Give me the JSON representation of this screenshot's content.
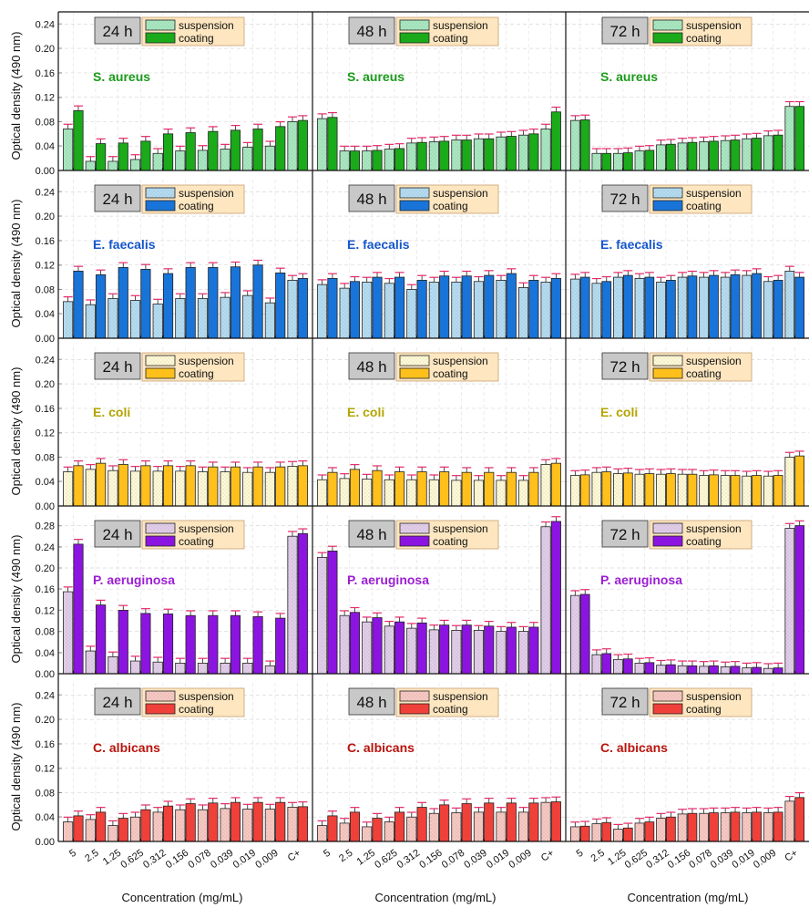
{
  "figure": {
    "ylabel": "Optical density (490 nm)",
    "xlabel": "Concentration (mg/mL)",
    "times": [
      "24 h",
      "48 h",
      "72 h"
    ],
    "legend": [
      "suspension",
      "coating"
    ],
    "x_tick_labels": [
      "5",
      "2.5",
      "1.25",
      "0.625",
      "0.312",
      "0.156",
      "0.078",
      "0.039",
      "0.019",
      "0.009",
      "C+"
    ]
  },
  "colors": {
    "S. aureus": {
      "coat": "#1aaa1a",
      "susp": "#a8e8c0",
      "label": "#1a9a1a"
    },
    "E. faecalis": {
      "coat": "#1874d8",
      "susp": "#b4dcf2",
      "label": "#1456cc"
    },
    "E. coli": {
      "coat": "#ffc01c",
      "susp": "#fffad6",
      "label": "#b4a400"
    },
    "P. aeruginosa": {
      "coat": "#8c14e0",
      "susp": "#e2cdea",
      "label": "#9c1ed4"
    },
    "C. albicans": {
      "coat": "#f0403a",
      "susp": "#f8c8c2",
      "label": "#b8140c"
    },
    "errorbar": "#e8286a",
    "legend_bg": "#fde6c0",
    "time_badge_bg": "#c8c8c8"
  },
  "chart_data": [
    {
      "type": "bar",
      "organism": "S. aureus",
      "ylim": [
        0,
        0.26
      ],
      "yticks": [
        "0.00",
        "0.04",
        "0.08",
        "0.12",
        "0.16",
        "0.20",
        "0.24"
      ],
      "panels": [
        {
          "time": "24 h",
          "categories": [
            "5",
            "2.5",
            "1.25",
            "0.625",
            "0.312",
            "0.156",
            "0.078",
            "0.039",
            "0.019",
            "0.009",
            "C+"
          ],
          "series": [
            {
              "name": "suspension",
              "values": [
                0.068,
                0.015,
                0.015,
                0.018,
                0.028,
                0.032,
                0.033,
                0.035,
                0.038,
                0.04,
                0.08
              ]
            },
            {
              "name": "coating",
              "values": [
                0.098,
                0.044,
                0.045,
                0.048,
                0.06,
                0.062,
                0.064,
                0.066,
                0.068,
                0.072,
                0.082
              ]
            }
          ]
        },
        {
          "time": "48 h",
          "categories": [
            "5",
            "2.5",
            "1.25",
            "0.625",
            "0.312",
            "0.156",
            "0.078",
            "0.039",
            "0.019",
            "0.009",
            "C+"
          ],
          "series": [
            {
              "name": "suspension",
              "values": [
                0.085,
                0.032,
                0.032,
                0.035,
                0.045,
                0.047,
                0.05,
                0.052,
                0.055,
                0.058,
                0.068
              ]
            },
            {
              "name": "coating",
              "values": [
                0.087,
                0.032,
                0.033,
                0.036,
                0.046,
                0.048,
                0.05,
                0.052,
                0.056,
                0.06,
                0.096
              ]
            }
          ]
        },
        {
          "time": "72 h",
          "categories": [
            "5",
            "2.5",
            "1.25",
            "0.625",
            "0.312",
            "0.156",
            "0.078",
            "0.039",
            "0.019",
            "0.009",
            "C+"
          ],
          "series": [
            {
              "name": "suspension",
              "values": [
                0.082,
                0.028,
                0.028,
                0.032,
                0.042,
                0.045,
                0.047,
                0.049,
                0.052,
                0.057,
                0.105
              ]
            },
            {
              "name": "coating",
              "values": [
                0.083,
                0.028,
                0.029,
                0.033,
                0.043,
                0.046,
                0.048,
                0.05,
                0.053,
                0.058,
                0.105
              ]
            }
          ]
        }
      ]
    },
    {
      "type": "bar",
      "organism": "E. faecalis",
      "ylim": [
        0,
        0.26
      ],
      "yticks": [
        "0.00",
        "0.04",
        "0.08",
        "0.12",
        "0.16",
        "0.20",
        "0.24"
      ],
      "panels": [
        {
          "time": "24 h",
          "categories": [
            "5",
            "2.5",
            "1.25",
            "0.625",
            "0.312",
            "0.156",
            "0.078",
            "0.039",
            "0.019",
            "0.009",
            "C+"
          ],
          "series": [
            {
              "name": "suspension",
              "values": [
                0.06,
                0.055,
                0.065,
                0.062,
                0.056,
                0.065,
                0.065,
                0.067,
                0.07,
                0.058,
                0.095
              ]
            },
            {
              "name": "coating",
              "values": [
                0.11,
                0.104,
                0.116,
                0.113,
                0.106,
                0.116,
                0.116,
                0.117,
                0.12,
                0.107,
                0.098
              ]
            }
          ]
        },
        {
          "time": "48 h",
          "categories": [
            "5",
            "2.5",
            "1.25",
            "0.625",
            "0.312",
            "0.156",
            "0.078",
            "0.039",
            "0.019",
            "0.009",
            "C+"
          ],
          "series": [
            {
              "name": "suspension",
              "values": [
                0.088,
                0.082,
                0.092,
                0.09,
                0.08,
                0.092,
                0.092,
                0.093,
                0.095,
                0.083,
                0.092
              ]
            },
            {
              "name": "coating",
              "values": [
                0.098,
                0.093,
                0.1,
                0.1,
                0.095,
                0.102,
                0.102,
                0.103,
                0.106,
                0.095,
                0.098
              ]
            }
          ]
        },
        {
          "time": "72 h",
          "categories": [
            "5",
            "2.5",
            "1.25",
            "0.625",
            "0.312",
            "0.156",
            "0.078",
            "0.039",
            "0.019",
            "0.009",
            "C+"
          ],
          "series": [
            {
              "name": "suspension",
              "values": [
                0.097,
                0.09,
                0.1,
                0.098,
                0.092,
                0.1,
                0.1,
                0.1,
                0.103,
                0.093,
                0.11
              ]
            },
            {
              "name": "coating",
              "values": [
                0.1,
                0.093,
                0.103,
                0.1,
                0.095,
                0.102,
                0.103,
                0.104,
                0.106,
                0.095,
                0.1
              ]
            }
          ]
        }
      ]
    },
    {
      "type": "bar",
      "organism": "E. coli",
      "ylim": [
        0,
        0.26
      ],
      "yticks": [
        "0.00",
        "0.04",
        "0.08",
        "0.12",
        "0.16",
        "0.20",
        "0.24"
      ],
      "panels": [
        {
          "time": "24 h",
          "categories": [
            "5",
            "2.5",
            "1.25",
            "0.625",
            "0.312",
            "0.156",
            "0.078",
            "0.039",
            "0.019",
            "0.009",
            "C+"
          ],
          "series": [
            {
              "name": "suspension",
              "values": [
                0.056,
                0.06,
                0.058,
                0.057,
                0.057,
                0.057,
                0.056,
                0.056,
                0.055,
                0.055,
                0.065
              ]
            },
            {
              "name": "coating",
              "values": [
                0.066,
                0.07,
                0.068,
                0.066,
                0.066,
                0.066,
                0.064,
                0.064,
                0.064,
                0.064,
                0.066
              ]
            }
          ]
        },
        {
          "time": "48 h",
          "categories": [
            "5",
            "2.5",
            "1.25",
            "0.625",
            "0.312",
            "0.156",
            "0.078",
            "0.039",
            "0.019",
            "0.009",
            "C+"
          ],
          "series": [
            {
              "name": "suspension",
              "values": [
                0.043,
                0.045,
                0.044,
                0.043,
                0.043,
                0.043,
                0.042,
                0.042,
                0.042,
                0.042,
                0.068
              ]
            },
            {
              "name": "coating",
              "values": [
                0.055,
                0.06,
                0.058,
                0.056,
                0.056,
                0.056,
                0.055,
                0.055,
                0.055,
                0.055,
                0.07
              ]
            }
          ]
        },
        {
          "time": "72 h",
          "categories": [
            "5",
            "2.5",
            "1.25",
            "0.625",
            "0.312",
            "0.156",
            "0.078",
            "0.039",
            "0.019",
            "0.009",
            "C+"
          ],
          "series": [
            {
              "name": "suspension",
              "values": [
                0.05,
                0.055,
                0.053,
                0.052,
                0.052,
                0.052,
                0.05,
                0.05,
                0.049,
                0.049,
                0.08
              ]
            },
            {
              "name": "coating",
              "values": [
                0.051,
                0.056,
                0.054,
                0.053,
                0.053,
                0.052,
                0.051,
                0.05,
                0.05,
                0.05,
                0.082
              ]
            }
          ]
        }
      ]
    },
    {
      "type": "bar",
      "organism": "P. aeruginosa",
      "ylim": [
        0,
        0.3
      ],
      "yticks": [
        "0.00",
        "0.04",
        "0.08",
        "0.12",
        "0.16",
        "0.20",
        "0.24",
        "0.28"
      ],
      "panels": [
        {
          "time": "24 h",
          "categories": [
            "5",
            "2.5",
            "1.25",
            "0.625",
            "0.312",
            "0.156",
            "0.078",
            "0.039",
            "0.019",
            "0.009",
            "C+"
          ],
          "series": [
            {
              "name": "suspension",
              "values": [
                0.155,
                0.043,
                0.032,
                0.024,
                0.022,
                0.02,
                0.02,
                0.02,
                0.02,
                0.015,
                0.26
              ]
            },
            {
              "name": "coating",
              "values": [
                0.245,
                0.13,
                0.12,
                0.114,
                0.113,
                0.11,
                0.11,
                0.11,
                0.108,
                0.105,
                0.265
              ]
            }
          ]
        },
        {
          "time": "48 h",
          "categories": [
            "5",
            "2.5",
            "1.25",
            "0.625",
            "0.312",
            "0.156",
            "0.078",
            "0.039",
            "0.019",
            "0.009",
            "C+"
          ],
          "series": [
            {
              "name": "suspension",
              "values": [
                0.22,
                0.11,
                0.098,
                0.09,
                0.086,
                0.083,
                0.082,
                0.082,
                0.08,
                0.08,
                0.278
              ]
            },
            {
              "name": "coating",
              "values": [
                0.232,
                0.116,
                0.106,
                0.098,
                0.096,
                0.092,
                0.092,
                0.09,
                0.088,
                0.088,
                0.288
              ]
            }
          ]
        },
        {
          "time": "72 h",
          "categories": [
            "5",
            "2.5",
            "1.25",
            "0.625",
            "0.312",
            "0.156",
            "0.078",
            "0.039",
            "0.019",
            "0.009",
            "C+"
          ],
          "series": [
            {
              "name": "suspension",
              "values": [
                0.148,
                0.036,
                0.027,
                0.02,
                0.016,
                0.015,
                0.014,
                0.013,
                0.011,
                0.01,
                0.275
              ]
            },
            {
              "name": "coating",
              "values": [
                0.15,
                0.038,
                0.028,
                0.021,
                0.017,
                0.015,
                0.015,
                0.014,
                0.012,
                0.011,
                0.28
              ]
            }
          ]
        }
      ]
    },
    {
      "type": "bar",
      "organism": "C. albicans",
      "ylim": [
        0,
        0.26
      ],
      "yticks": [
        "0.00",
        "0.04",
        "0.08",
        "0.12",
        "0.16",
        "0.20",
        "0.24"
      ],
      "panels": [
        {
          "time": "24 h",
          "categories": [
            "5",
            "2.5",
            "1.25",
            "0.625",
            "0.312",
            "0.156",
            "0.078",
            "0.039",
            "0.019",
            "0.009",
            "C+"
          ],
          "series": [
            {
              "name": "suspension",
              "values": [
                0.032,
                0.036,
                0.026,
                0.04,
                0.048,
                0.052,
                0.052,
                0.054,
                0.053,
                0.053,
                0.056
              ]
            },
            {
              "name": "coating",
              "values": [
                0.042,
                0.048,
                0.038,
                0.052,
                0.058,
                0.062,
                0.063,
                0.064,
                0.064,
                0.064,
                0.057
              ]
            }
          ]
        },
        {
          "time": "48 h",
          "categories": [
            "5",
            "2.5",
            "1.25",
            "0.625",
            "0.312",
            "0.156",
            "0.078",
            "0.039",
            "0.019",
            "0.009",
            "C+"
          ],
          "series": [
            {
              "name": "suspension",
              "values": [
                0.026,
                0.03,
                0.024,
                0.032,
                0.04,
                0.046,
                0.047,
                0.048,
                0.048,
                0.048,
                0.064
              ]
            },
            {
              "name": "coating",
              "values": [
                0.042,
                0.048,
                0.038,
                0.048,
                0.056,
                0.06,
                0.062,
                0.063,
                0.063,
                0.063,
                0.065
              ]
            }
          ]
        },
        {
          "time": "72 h",
          "categories": [
            "5",
            "2.5",
            "1.25",
            "0.625",
            "0.312",
            "0.156",
            "0.078",
            "0.039",
            "0.019",
            "0.009",
            "C+"
          ],
          "series": [
            {
              "name": "suspension",
              "values": [
                0.024,
                0.029,
                0.02,
                0.03,
                0.038,
                0.045,
                0.046,
                0.047,
                0.047,
                0.047,
                0.066
              ]
            },
            {
              "name": "coating",
              "values": [
                0.025,
                0.031,
                0.022,
                0.032,
                0.04,
                0.046,
                0.047,
                0.048,
                0.048,
                0.048,
                0.072
              ]
            }
          ]
        }
      ]
    }
  ]
}
